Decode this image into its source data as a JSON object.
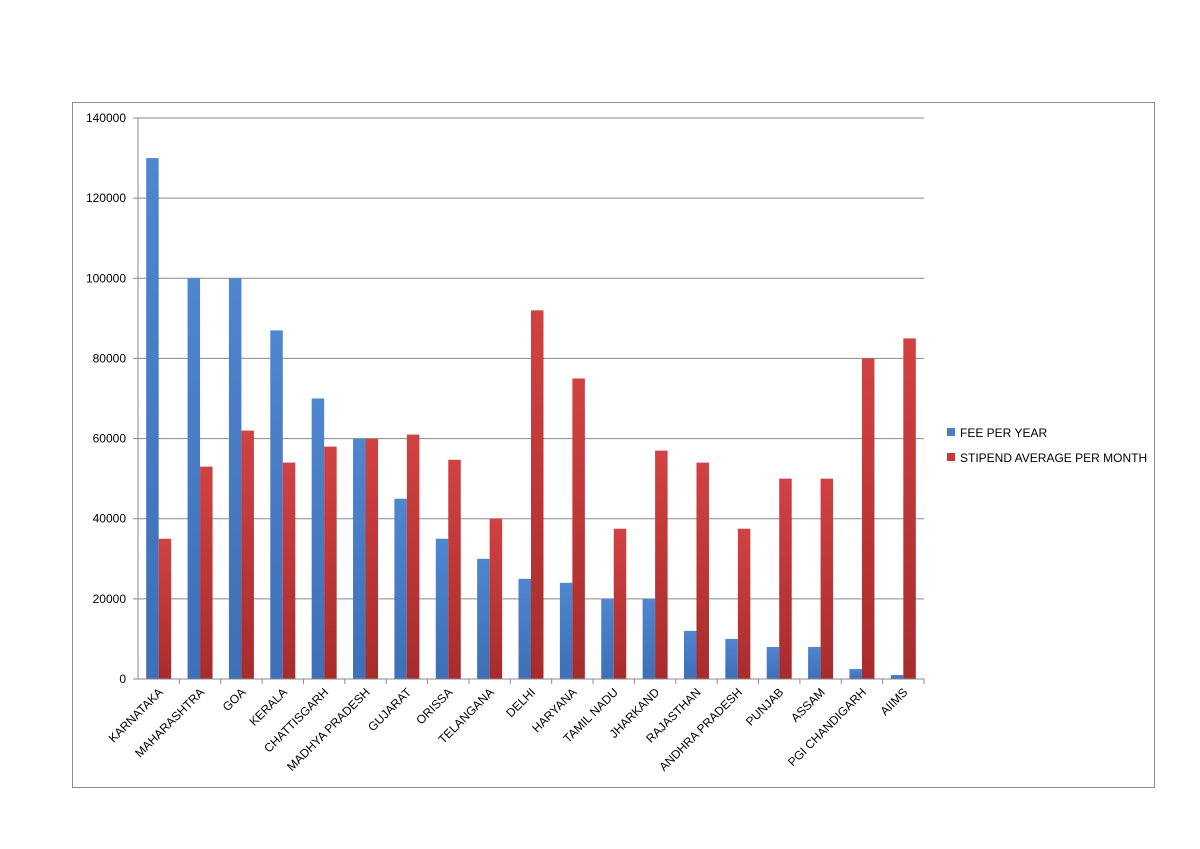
{
  "chart_data": {
    "type": "bar",
    "title": "",
    "xlabel": "",
    "ylabel": "",
    "ylim": [
      0,
      140000
    ],
    "yticks": [
      "0",
      "20000",
      "40000",
      "60000",
      "80000",
      "100000",
      "120000",
      "140000"
    ],
    "grid": true,
    "legend_position": "right",
    "categories": [
      "KARNATAKA",
      "MAHARASHTRA",
      "GOA",
      "KERALA",
      "CHATTISGARH",
      "MADHYA PRADESH",
      "GUJARAT",
      "ORISSA",
      "TELANGANA",
      "DELHI",
      "HARYANA",
      "TAMIL NADU",
      "JHARKAND",
      "RAJASTHAN",
      "ANDHRA PRADESH",
      "PUNJAB",
      "ASSAM",
      "PGI CHANDIGARH",
      "AIIMS"
    ],
    "series": [
      {
        "name": "FEE PER YEAR",
        "color": "#4a7fc8",
        "values": [
          130000,
          100000,
          100000,
          87000,
          70000,
          60000,
          45000,
          35000,
          30000,
          25000,
          24000,
          20000,
          20000,
          12000,
          10000,
          8000,
          8000,
          2500,
          1000
        ]
      },
      {
        "name": "STIPEND AVERAGE PER MONTH",
        "color": "#c83a3a",
        "values": [
          35000,
          53000,
          62000,
          54000,
          58000,
          60000,
          61000,
          54700,
          40000,
          92000,
          75000,
          37500,
          57000,
          54000,
          37500,
          50000,
          50000,
          80000,
          85000
        ]
      }
    ]
  }
}
